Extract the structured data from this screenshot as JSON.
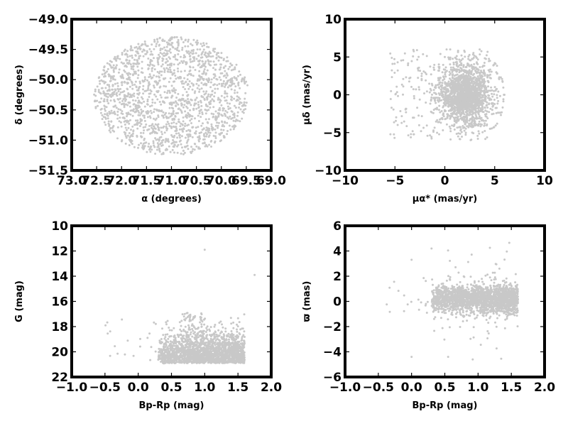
{
  "chart_data": [
    {
      "type": "scatter",
      "xlabel": "α (degrees)",
      "ylabel": "δ (degrees)",
      "xlim": [
        73.0,
        69.0
      ],
      "ylim": [
        -51.5,
        -49.0
      ],
      "xticks": [
        73.0,
        72.5,
        72.0,
        71.5,
        71.0,
        70.5,
        70.0,
        69.5,
        69.0
      ],
      "xtick_labels": [
        "73.0",
        "72.5",
        "72.0",
        "71.5",
        "71.0",
        "70.5",
        "70.0",
        "69.5",
        "69.0"
      ],
      "yticks": [
        -49.0,
        -49.5,
        -50.0,
        -50.5,
        -51.0,
        -51.5
      ],
      "ytick_labels": [
        "−49.0",
        "−49.5",
        "−50.0",
        "−50.5",
        "−51.0",
        "−51.5"
      ],
      "marker_color": "#c8c8c8",
      "distribution": {
        "shape": "ellipse",
        "x_center": 71.0,
        "x_halfwidth": 1.55,
        "y_center": -50.27,
        "y_halfwidth": 0.98,
        "n_points": 1700
      }
    },
    {
      "type": "scatter",
      "xlabel": "μα* (mas/yr)",
      "ylabel": "μδ (mas/yr)",
      "xlim": [
        -10,
        10
      ],
      "ylim": [
        -10,
        10
      ],
      "xticks": [
        -10,
        -5,
        0,
        5,
        10
      ],
      "xtick_labels": [
        "−10",
        "−5",
        "0",
        "5",
        "10"
      ],
      "yticks": [
        10,
        5,
        0,
        -5,
        -10
      ],
      "ytick_labels": [
        "10",
        "5",
        "0",
        "−5",
        "−10"
      ],
      "marker_color": "#c8c8c8",
      "distribution": {
        "shape": "cluster",
        "x_center": 2.0,
        "x_spread": 1.8,
        "x_range": [
          -5.5,
          6.0
        ],
        "y_center": 0.0,
        "y_spread": 2.2,
        "y_range": [
          -6.0,
          6.0
        ],
        "n_points": 2000
      }
    },
    {
      "type": "scatter",
      "xlabel": "Bp-Rp (mag)",
      "ylabel": "G (mag)",
      "xlim": [
        -1.0,
        2.0
      ],
      "ylim": [
        22,
        10
      ],
      "xticks": [
        -1.0,
        -0.5,
        0.0,
        0.5,
        1.0,
        1.5,
        2.0
      ],
      "xtick_labels": [
        "−1.0",
        "−0.5",
        "0.0",
        "0.5",
        "1.0",
        "1.5",
        "2.0"
      ],
      "yticks": [
        22,
        20,
        18,
        16,
        14,
        12,
        10
      ],
      "ytick_labels": [
        "22",
        "20",
        "18",
        "16",
        "14",
        "12",
        "10"
      ],
      "marker_color": "#c8c8c8",
      "distribution": {
        "shape": "cmd",
        "x_range": [
          0.3,
          1.6
        ],
        "y_faint_limit": 20.9,
        "y_bright_limit": 16.0,
        "n_points": 2000
      }
    },
    {
      "type": "scatter",
      "xlabel": "Bp-Rp (mag)",
      "ylabel": "ϖ (mas)",
      "xlim": [
        -1.0,
        2.0
      ],
      "ylim": [
        -6,
        6
      ],
      "xticks": [
        -1.0,
        -0.5,
        0.0,
        0.5,
        1.0,
        1.5,
        2.0
      ],
      "xtick_labels": [
        "−1.0",
        "−0.5",
        "0.0",
        "0.5",
        "1.0",
        "1.5",
        "2.0"
      ],
      "yticks": [
        6,
        4,
        2,
        0,
        -2,
        -4,
        -6
      ],
      "ytick_labels": [
        "6",
        "4",
        "2",
        "0",
        "−2",
        "−4",
        "−6"
      ],
      "marker_color": "#c8c8c8",
      "distribution": {
        "shape": "band",
        "x_range": [
          0.3,
          1.6
        ],
        "y_center": 0.2,
        "y_spread": 0.55,
        "n_points": 2000
      }
    }
  ]
}
